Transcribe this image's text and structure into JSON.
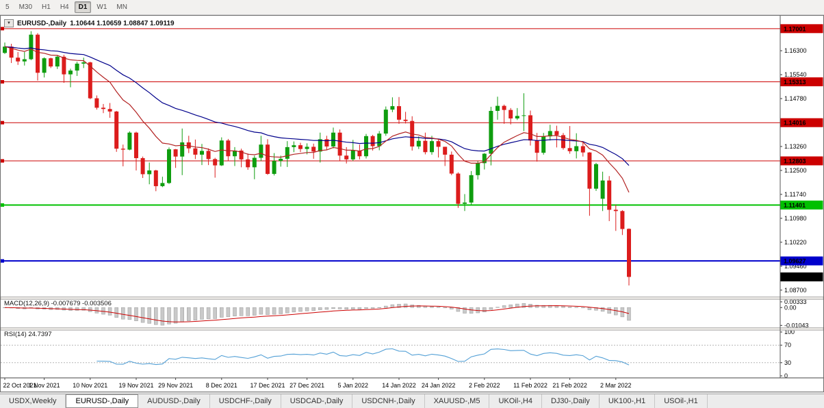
{
  "toolbar": {
    "periods": [
      {
        "label": "5",
        "active": false
      },
      {
        "label": "M30",
        "active": false
      },
      {
        "label": "H1",
        "active": false
      },
      {
        "label": "H4",
        "active": false
      },
      {
        "label": "D1",
        "active": true
      },
      {
        "label": "W1",
        "active": false
      },
      {
        "label": "MN",
        "active": false
      }
    ]
  },
  "chart": {
    "dropdown_glyph": "▼",
    "title": {
      "symbol": "EURUSD-,Daily",
      "ohlc": "1.10644 1.10659 1.08847 1.09119"
    }
  },
  "chart_data": {
    "type": "candlestick",
    "symbol": "EURUSD-",
    "timeframe": "Daily",
    "ohlc_current": {
      "open": 1.10644,
      "high": 1.10659,
      "low": 1.08847,
      "close": 1.09119
    },
    "y_range": [
      1.085,
      1.1728
    ],
    "price_axis_ticks": [
      "1.16300",
      "1.15540",
      "1.14780",
      "1.14020",
      "1.13260",
      "1.12500",
      "1.11740",
      "1.10980",
      "1.10220",
      "1.09460",
      "1.08700"
    ],
    "hlines": [
      {
        "value": 1.17001,
        "label": "1.17001",
        "color": "#cc0000",
        "width": 1
      },
      {
        "value": 1.15313,
        "label": "1.15313",
        "color": "#cc0000",
        "width": 1
      },
      {
        "value": 1.14016,
        "label": "1.14016",
        "color": "#cc0000",
        "width": 1
      },
      {
        "value": 1.12803,
        "label": "1.12803",
        "color": "#cc0000",
        "width": 1
      },
      {
        "value": 1.11401,
        "label": "1.11401",
        "color": "#00c000",
        "width": 2
      },
      {
        "value": 1.09627,
        "label": "1.09627",
        "color": "#0000cc",
        "width": 2
      }
    ],
    "current_price": {
      "value": 1.09119,
      "label": "1.09119",
      "color": "#000000"
    },
    "colors": {
      "up": "#0f9d0f",
      "down": "#dc1c1c",
      "macd_hist": "#c9c9c9",
      "macd_signal": "#cc0000",
      "rsi": "#53a0d6"
    },
    "overlays": [
      {
        "name": "ma-slow-blue",
        "type": "ema",
        "period": 34,
        "color": "#00008b"
      },
      {
        "name": "ma-fast-red",
        "type": "ema",
        "period": 13,
        "color": "#b22222"
      }
    ],
    "indicators": {
      "macd": {
        "label": "MACD(12,26,9) -0.007679 -0.003506",
        "fast": 12,
        "slow": 26,
        "signal": 9,
        "values": [
          -0.007679,
          -0.003506
        ],
        "range": [
          -0.0115,
          0.0045
        ],
        "axis_ticks": [
          {
            "v": 0.00333,
            "label": "0.00333"
          },
          {
            "v": 0,
            "label": "0.00"
          },
          {
            "v": -0.01043,
            "label": "-0.01043"
          }
        ]
      },
      "rsi": {
        "label": "RSI(14) 24.7397",
        "period": 14,
        "value": 24.7397,
        "range": [
          0,
          100
        ],
        "levels": [
          70,
          30
        ],
        "axis_ticks": [
          {
            "v": 100,
            "label": "100"
          },
          {
            "v": 70,
            "label": "70"
          },
          {
            "v": 30,
            "label": "30"
          },
          {
            "v": 0,
            "label": "0"
          }
        ]
      }
    },
    "date_ticks": [
      {
        "label": "22 Oct 2021",
        "i": 0
      },
      {
        "label": "1 Nov 2021",
        "i": 6
      },
      {
        "label": "10 Nov 2021",
        "i": 13
      },
      {
        "label": "19 Nov 2021",
        "i": 20
      },
      {
        "label": "29 Nov 2021",
        "i": 26
      },
      {
        "label": "8 Dec 2021",
        "i": 33
      },
      {
        "label": "17 Dec 2021",
        "i": 40
      },
      {
        "label": "27 Dec 2021",
        "i": 46
      },
      {
        "label": "5 Jan 2022",
        "i": 53
      },
      {
        "label": "14 Jan 2022",
        "i": 60
      },
      {
        "label": "24 Jan 2022",
        "i": 66
      },
      {
        "label": "2 Feb 2022",
        "i": 73
      },
      {
        "label": "11 Feb 2022",
        "i": 80
      },
      {
        "label": "21 Feb 2022",
        "i": 86
      },
      {
        "label": "2 Mar 2022",
        "i": 93
      }
    ],
    "candles": [
      [
        1.1623,
        1.1656,
        1.162,
        1.1643
      ],
      [
        1.1643,
        1.1652,
        1.1591,
        1.1608
      ],
      [
        1.1608,
        1.1626,
        1.1585,
        1.1596
      ],
      [
        1.1596,
        1.1626,
        1.1583,
        1.1603
      ],
      [
        1.1603,
        1.1692,
        1.16,
        1.1681
      ],
      [
        1.1681,
        1.1686,
        1.1535,
        1.156
      ],
      [
        1.156,
        1.1609,
        1.1545,
        1.1606
      ],
      [
        1.1606,
        1.1608,
        1.1575,
        1.158
      ],
      [
        1.158,
        1.1616,
        1.1572,
        1.1611
      ],
      [
        1.1611,
        1.1617,
        1.1528,
        1.1555
      ],
      [
        1.1555,
        1.1573,
        1.1514,
        1.1567
      ],
      [
        1.1567,
        1.1595,
        1.155,
        1.1589
      ],
      [
        1.1589,
        1.1608,
        1.1575,
        1.1593
      ],
      [
        1.1593,
        1.1595,
        1.1476,
        1.1479
      ],
      [
        1.1479,
        1.1488,
        1.1443,
        1.1449
      ],
      [
        1.1449,
        1.1461,
        1.1432,
        1.1445
      ],
      [
        1.1445,
        1.1464,
        1.1417,
        1.1437
      ],
      [
        1.1437,
        1.1439,
        1.1309,
        1.1319
      ],
      [
        1.1319,
        1.1332,
        1.1263,
        1.1316
      ],
      [
        1.1316,
        1.1374,
        1.1314,
        1.137
      ],
      [
        1.137,
        1.1373,
        1.125,
        1.1289
      ],
      [
        1.1289,
        1.1294,
        1.1226,
        1.1238
      ],
      [
        1.1238,
        1.1275,
        1.1206,
        1.125
      ],
      [
        1.125,
        1.1252,
        1.1184,
        1.12
      ],
      [
        1.12,
        1.123,
        1.1197,
        1.121
      ],
      [
        1.121,
        1.1323,
        1.1207,
        1.1317
      ],
      [
        1.1317,
        1.1318,
        1.1258,
        1.1294
      ],
      [
        1.1294,
        1.1383,
        1.1235,
        1.1339
      ],
      [
        1.1339,
        1.136,
        1.1305,
        1.132
      ],
      [
        1.132,
        1.1348,
        1.1286,
        1.13
      ],
      [
        1.13,
        1.1334,
        1.1267,
        1.1312
      ],
      [
        1.1312,
        1.132,
        1.1267,
        1.1286
      ],
      [
        1.1286,
        1.129,
        1.1227,
        1.1266
      ],
      [
        1.1266,
        1.1355,
        1.1264,
        1.1345
      ],
      [
        1.1345,
        1.135,
        1.128,
        1.1295
      ],
      [
        1.1295,
        1.1324,
        1.1264,
        1.1313
      ],
      [
        1.1313,
        1.1319,
        1.126,
        1.1285
      ],
      [
        1.1285,
        1.1304,
        1.1252,
        1.126
      ],
      [
        1.126,
        1.1297,
        1.1222,
        1.129
      ],
      [
        1.129,
        1.136,
        1.128,
        1.1332
      ],
      [
        1.1332,
        1.1349,
        1.1236,
        1.1239
      ],
      [
        1.1239,
        1.1305,
        1.1234,
        1.128
      ],
      [
        1.128,
        1.1297,
        1.1262,
        1.1287
      ],
      [
        1.1287,
        1.1343,
        1.1261,
        1.1324
      ],
      [
        1.1324,
        1.1342,
        1.1308,
        1.133
      ],
      [
        1.133,
        1.1338,
        1.1308,
        1.1318
      ],
      [
        1.1318,
        1.1336,
        1.1301,
        1.1325
      ],
      [
        1.1325,
        1.1335,
        1.1287,
        1.131
      ],
      [
        1.131,
        1.137,
        1.1275,
        1.1349
      ],
      [
        1.1349,
        1.136,
        1.1315,
        1.1326
      ],
      [
        1.1326,
        1.1386,
        1.132,
        1.137
      ],
      [
        1.137,
        1.138,
        1.1279,
        1.1297
      ],
      [
        1.1297,
        1.1324,
        1.1272,
        1.1285
      ],
      [
        1.1285,
        1.1347,
        1.128,
        1.1313
      ],
      [
        1.1313,
        1.1332,
        1.1285,
        1.1295
      ],
      [
        1.1295,
        1.1366,
        1.1288,
        1.1359
      ],
      [
        1.1359,
        1.1363,
        1.1313,
        1.1327
      ],
      [
        1.1327,
        1.1375,
        1.1314,
        1.1367
      ],
      [
        1.1367,
        1.1453,
        1.136,
        1.1443
      ],
      [
        1.1443,
        1.1482,
        1.1435,
        1.1454
      ],
      [
        1.1454,
        1.1483,
        1.1398,
        1.1411
      ],
      [
        1.1411,
        1.1436,
        1.1399,
        1.1407
      ],
      [
        1.1407,
        1.1422,
        1.1313,
        1.1326
      ],
      [
        1.1326,
        1.1358,
        1.1318,
        1.1344
      ],
      [
        1.1344,
        1.137,
        1.1301,
        1.1308
      ],
      [
        1.1308,
        1.136,
        1.13,
        1.1343
      ],
      [
        1.1343,
        1.1349,
        1.1291,
        1.1325
      ],
      [
        1.1325,
        1.1325,
        1.1264,
        1.13
      ],
      [
        1.13,
        1.131,
        1.1235,
        1.124
      ],
      [
        1.124,
        1.1244,
        1.1131,
        1.1144
      ],
      [
        1.1144,
        1.1175,
        1.1121,
        1.1148
      ],
      [
        1.1148,
        1.1248,
        1.1141,
        1.1235
      ],
      [
        1.1235,
        1.1279,
        1.1221,
        1.1273
      ],
      [
        1.1273,
        1.1305,
        1.1253,
        1.1303
      ],
      [
        1.1303,
        1.1452,
        1.1266,
        1.1439
      ],
      [
        1.1439,
        1.1484,
        1.1411,
        1.1455
      ],
      [
        1.1455,
        1.1459,
        1.1398,
        1.1442
      ],
      [
        1.1442,
        1.1448,
        1.1396,
        1.1415
      ],
      [
        1.1415,
        1.1448,
        1.141,
        1.1423
      ],
      [
        1.1423,
        1.1495,
        1.1375,
        1.1425
      ],
      [
        1.1425,
        1.144,
        1.1329,
        1.1345
      ],
      [
        1.1345,
        1.1369,
        1.1278,
        1.1306
      ],
      [
        1.1306,
        1.1369,
        1.13,
        1.1358
      ],
      [
        1.1358,
        1.1395,
        1.1345,
        1.1375
      ],
      [
        1.1375,
        1.1392,
        1.1323,
        1.1362
      ],
      [
        1.1362,
        1.1369,
        1.1316,
        1.1321
      ],
      [
        1.1321,
        1.1391,
        1.1303,
        1.1311
      ],
      [
        1.1311,
        1.1368,
        1.1288,
        1.1327
      ],
      [
        1.1327,
        1.1343,
        1.1294,
        1.1307
      ],
      [
        1.1307,
        1.1308,
        1.1106,
        1.1192
      ],
      [
        1.1192,
        1.1274,
        1.1185,
        1.127
      ],
      [
        1.116,
        1.1246,
        1.1121,
        1.1218
      ],
      [
        1.1218,
        1.1232,
        1.1089,
        1.1125
      ],
      [
        1.1125,
        1.1141,
        1.1058,
        1.1121
      ],
      [
        1.1121,
        1.1124,
        1.1045,
        1.1064
      ],
      [
        1.10644,
        1.10659,
        1.08847,
        1.09119
      ]
    ]
  },
  "tabs": [
    {
      "label": "USDX,Weekly",
      "active": false
    },
    {
      "label": "EURUSD-,Daily",
      "active": true
    },
    {
      "label": "AUDUSD-,Daily",
      "active": false
    },
    {
      "label": "USDCHF-,Daily",
      "active": false
    },
    {
      "label": "USDCAD-,Daily",
      "active": false
    },
    {
      "label": "USDCNH-,Daily",
      "active": false
    },
    {
      "label": "XAUUSD-,M5",
      "active": false
    },
    {
      "label": "UKOil-,H4",
      "active": false
    },
    {
      "label": "DJ30-,Daily",
      "active": false
    },
    {
      "label": "UK100-,H1",
      "active": false
    },
    {
      "label": "USOil-,H1",
      "active": false
    }
  ]
}
